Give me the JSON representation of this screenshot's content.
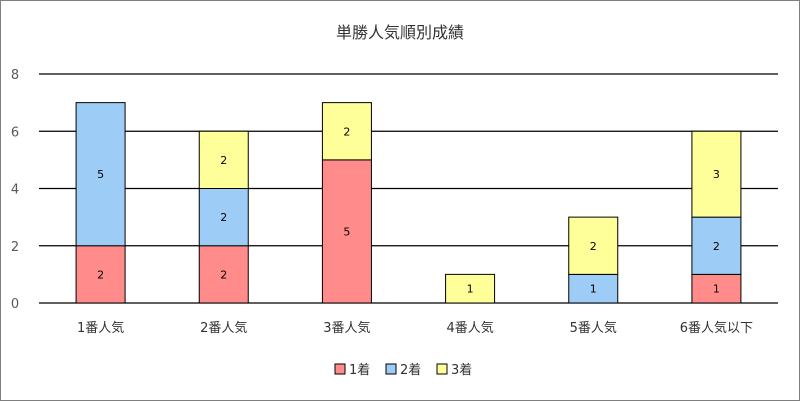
{
  "chart_data": {
    "type": "bar",
    "stacked": true,
    "title": "単勝人気順別成績",
    "xlabel": "",
    "ylabel": "",
    "ylim": [
      0,
      8
    ],
    "yticks": [
      0,
      2,
      4,
      6,
      8
    ],
    "grid": true,
    "legend_position": "bottom",
    "categories": [
      "1番人気",
      "2番人気",
      "3番人気",
      "4番人気",
      "5番人気",
      "6番人気以下"
    ],
    "series": [
      {
        "name": "1着",
        "color": "#ff8b8b",
        "values": [
          2,
          2,
          5,
          0,
          0,
          1
        ]
      },
      {
        "name": "2着",
        "color": "#9dcdf7",
        "values": [
          5,
          2,
          0,
          0,
          1,
          2
        ]
      },
      {
        "name": "3着",
        "color": "#ffff99",
        "values": [
          0,
          2,
          2,
          1,
          2,
          3
        ]
      }
    ]
  }
}
